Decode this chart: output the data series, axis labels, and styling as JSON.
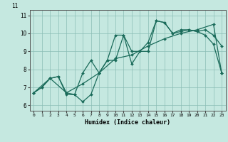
{
  "xlabel": "Humidex (Indice chaleur)",
  "bg_color": "#c5e8e0",
  "grid_color": "#8bbdb5",
  "line_color": "#1a6b5a",
  "xlim": [
    -0.5,
    23.5
  ],
  "ylim": [
    5.7,
    11.3
  ],
  "xticks": [
    0,
    1,
    2,
    3,
    4,
    5,
    6,
    7,
    8,
    9,
    10,
    11,
    12,
    13,
    14,
    15,
    16,
    17,
    18,
    19,
    20,
    21,
    22,
    23
  ],
  "yticks": [
    6,
    7,
    8,
    9,
    10,
    11
  ],
  "line1_x": [
    0,
    1,
    2,
    3,
    4,
    5,
    6,
    7,
    8,
    9,
    10,
    11,
    12,
    13,
    14,
    15,
    16,
    17,
    18,
    19,
    20,
    21,
    22,
    23
  ],
  "line1_y": [
    6.7,
    7.0,
    7.5,
    7.6,
    6.6,
    6.6,
    6.2,
    6.6,
    7.8,
    8.5,
    8.5,
    9.9,
    8.3,
    9.0,
    9.0,
    10.7,
    10.6,
    10.0,
    10.1,
    10.2,
    10.1,
    9.9,
    9.4,
    7.8
  ],
  "line2_x": [
    0,
    1,
    2,
    3,
    4,
    5,
    6,
    7,
    8,
    9,
    10,
    11,
    12,
    13,
    14,
    15,
    16,
    17,
    18,
    19,
    20,
    21,
    22,
    23
  ],
  "line2_y": [
    6.7,
    7.0,
    7.5,
    7.6,
    6.7,
    6.6,
    7.8,
    8.5,
    7.8,
    8.5,
    9.9,
    9.9,
    9.0,
    9.0,
    9.5,
    10.7,
    10.6,
    10.0,
    10.2,
    10.2,
    10.1,
    10.2,
    9.9,
    9.3
  ],
  "line3_x": [
    0,
    2,
    4,
    6,
    8,
    10,
    12,
    14,
    16,
    18,
    20,
    22,
    23
  ],
  "line3_y": [
    6.7,
    7.5,
    6.7,
    7.2,
    7.8,
    8.6,
    8.8,
    9.3,
    9.7,
    10.0,
    10.2,
    10.5,
    7.8
  ],
  "top_label": "11"
}
